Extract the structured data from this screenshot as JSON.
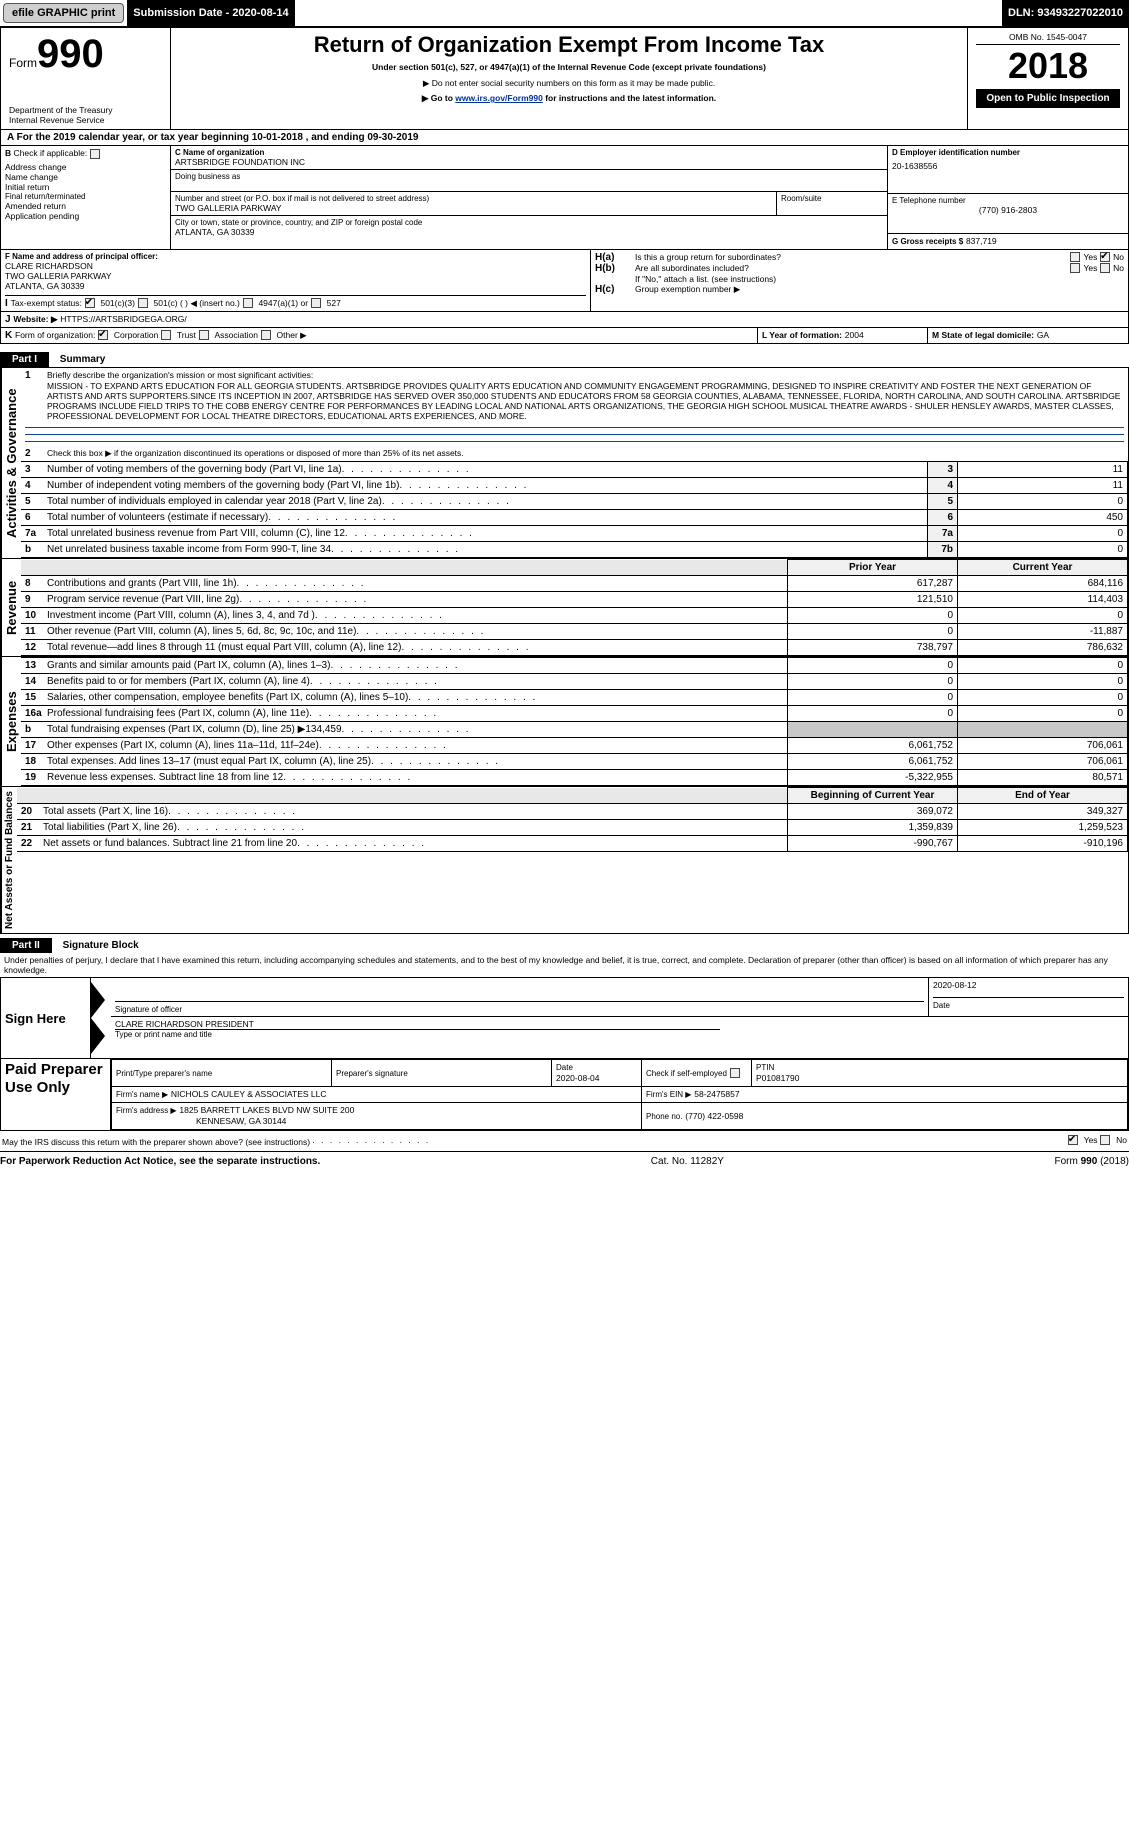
{
  "topbar": {
    "efile": "efile GRAPHIC print",
    "submission_label": "Submission Date - 2020-08-14",
    "dln_label": "DLN: 93493227022010"
  },
  "header": {
    "form_word": "Form",
    "form_num": "990",
    "dept1": "Department of the Treasury",
    "dept2": "Internal Revenue Service",
    "title": "Return of Organization Exempt From Income Tax",
    "subtitle": "Under section 501(c), 527, or 4947(a)(1) of the Internal Revenue Code (except private foundations)",
    "note1": "Do not enter social security numbers on this form as it may be made public.",
    "note2_pre": "Go to ",
    "note2_link": "www.irs.gov/Form990",
    "note2_post": " for instructions and the latest information.",
    "omb": "OMB No. 1545-0047",
    "year": "2018",
    "open": "Open to Public Inspection"
  },
  "line_a": "For the 2019 calendar year, or tax year beginning 10-01-2018    , and ending 09-30-2019",
  "box_b": {
    "title": "Check if applicable:",
    "items": [
      "Address change",
      "Name change",
      "Initial return",
      "Final return/terminated",
      "Amended return",
      "Application pending"
    ]
  },
  "box_c": {
    "label": "C Name of organization",
    "name": "ARTSBRIDGE FOUNDATION INC",
    "dba_label": "Doing business as",
    "addr_label": "Number and street (or P.O. box if mail is not delivered to street address)",
    "addr": "TWO GALLERIA PARKWAY",
    "room_label": "Room/suite",
    "city_label": "City or town, state or province, country, and ZIP or foreign postal code",
    "city": "ATLANTA, GA  30339"
  },
  "box_d": {
    "label": "D Employer identification number",
    "value": "20-1638556"
  },
  "box_e": {
    "label": "E Telephone number",
    "value": "(770) 916-2803"
  },
  "box_g": {
    "label": "G Gross receipts $",
    "value": "837,719"
  },
  "box_f": {
    "label": "F  Name and address of principal officer:",
    "line1": "CLARE RICHARDSON",
    "line2": "TWO GALLERIA PARKWAY",
    "line3": "ATLANTA, GA  30339"
  },
  "box_h": {
    "a": "Is this a group return for subordinates?",
    "b": "Are all subordinates included?",
    "b_note": "If \"No,\" attach a list. (see instructions)",
    "c": "Group exemption number ▶",
    "ha": "H(a)",
    "hb": "H(b)",
    "hc": "H(c)",
    "yes": "Yes",
    "no": "No"
  },
  "box_i": {
    "label": "Tax-exempt status:",
    "o1": "501(c)(3)",
    "o2": "501(c) (   ) ◀ (insert no.)",
    "o3": "4947(a)(1) or",
    "o4": "527"
  },
  "box_j": {
    "label": "Website: ▶",
    "value": "HTTPS://ARTSBRIDGEGA.ORG/"
  },
  "box_k": {
    "label": "Form of organization:",
    "o1": "Corporation",
    "o2": "Trust",
    "o3": "Association",
    "o4": "Other ▶"
  },
  "box_l": {
    "label": "L Year of formation:",
    "value": "2004"
  },
  "box_m": {
    "label": "M State of legal domicile:",
    "value": "GA"
  },
  "part1": {
    "band": "Part I",
    "title": "Summary",
    "q1_label": "Briefly describe the organization's mission or most significant activities:",
    "q1_text": "MISSION - TO EXPAND ARTS EDUCATION FOR ALL GEORGIA STUDENTS. ARTSBRIDGE PROVIDES QUALITY ARTS EDUCATION AND COMMUNITY ENGAGEMENT PROGRAMMING, DESIGNED TO INSPIRE CREATIVITY AND FOSTER THE NEXT GENERATION OF ARTISTS AND ARTS SUPPORTERS.SINCE ITS INCEPTION IN 2007, ARTSBRIDGE HAS SERVED OVER 350,000 STUDENTS AND EDUCATORS FROM 58 GEORGIA COUNTIES, ALABAMA, TENNESSEE, FLORIDA, NORTH CAROLINA, AND SOUTH CAROLINA. ARTSBRIDGE PROGRAMS INCLUDE FIELD TRIPS TO THE COBB ENERGY CENTRE FOR PERFORMANCES BY LEADING LOCAL AND NATIONAL ARTS ORGANIZATIONS, THE GEORGIA HIGH SCHOOL MUSICAL THEATRE AWARDS - SHULER HENSLEY AWARDS, MASTER CLASSES, PROFESSIONAL DEVELOPMENT FOR LOCAL THEATRE DIRECTORS, EDUCATIONAL ARTS EXPERIENCES, AND MORE.",
    "q2": "Check this box ▶     if the organization discontinued its operations or disposed of more than 25% of its net assets.",
    "rows_ag": [
      {
        "n": "3",
        "t": "Number of voting members of the governing body (Part VI, line 1a)",
        "c": "3",
        "v": "11"
      },
      {
        "n": "4",
        "t": "Number of independent voting members of the governing body (Part VI, line 1b)",
        "c": "4",
        "v": "11"
      },
      {
        "n": "5",
        "t": "Total number of individuals employed in calendar year 2018 (Part V, line 2a)",
        "c": "5",
        "v": "0"
      },
      {
        "n": "6",
        "t": "Total number of volunteers (estimate if necessary)",
        "c": "6",
        "v": "450"
      },
      {
        "n": "7a",
        "t": "Total unrelated business revenue from Part VIII, column (C), line 12",
        "c": "7a",
        "v": "0"
      },
      {
        "n": "b",
        "t": "Net unrelated business taxable income from Form 990-T, line 34",
        "c": "7b",
        "v": "0"
      }
    ],
    "col_prior": "Prior Year",
    "col_curr": "Current Year",
    "rows_rev": [
      {
        "n": "8",
        "t": "Contributions and grants (Part VIII, line 1h)",
        "p": "617,287",
        "c": "684,116"
      },
      {
        "n": "9",
        "t": "Program service revenue (Part VIII, line 2g)",
        "p": "121,510",
        "c": "114,403"
      },
      {
        "n": "10",
        "t": "Investment income (Part VIII, column (A), lines 3, 4, and 7d )",
        "p": "0",
        "c": "0"
      },
      {
        "n": "11",
        "t": "Other revenue (Part VIII, column (A), lines 5, 6d, 8c, 9c, 10c, and 11e)",
        "p": "0",
        "c": "-11,887"
      },
      {
        "n": "12",
        "t": "Total revenue—add lines 8 through 11 (must equal Part VIII, column (A), line 12)",
        "p": "738,797",
        "c": "786,632"
      }
    ],
    "rows_exp": [
      {
        "n": "13",
        "t": "Grants and similar amounts paid (Part IX, column (A), lines 1–3)",
        "p": "0",
        "c": "0"
      },
      {
        "n": "14",
        "t": "Benefits paid to or for members (Part IX, column (A), line 4)",
        "p": "0",
        "c": "0"
      },
      {
        "n": "15",
        "t": "Salaries, other compensation, employee benefits (Part IX, column (A), lines 5–10)",
        "p": "0",
        "c": "0"
      },
      {
        "n": "16a",
        "t": "Professional fundraising fees (Part IX, column (A), line 11e)",
        "p": "0",
        "c": "0"
      },
      {
        "n": "b",
        "t": "Total fundraising expenses (Part IX, column (D), line 25) ▶134,459",
        "p": "",
        "c": "",
        "grey": true
      },
      {
        "n": "17",
        "t": "Other expenses (Part IX, column (A), lines 11a–11d, 11f–24e)",
        "p": "6,061,752",
        "c": "706,061"
      },
      {
        "n": "18",
        "t": "Total expenses. Add lines 13–17 (must equal Part IX, column (A), line 25)",
        "p": "6,061,752",
        "c": "706,061"
      },
      {
        "n": "19",
        "t": "Revenue less expenses. Subtract line 18 from line 12",
        "p": "-5,322,955",
        "c": "80,571"
      }
    ],
    "col_begin": "Beginning of Current Year",
    "col_end": "End of Year",
    "rows_na": [
      {
        "n": "20",
        "t": "Total assets (Part X, line 16)",
        "p": "369,072",
        "c": "349,327"
      },
      {
        "n": "21",
        "t": "Total liabilities (Part X, line 26)",
        "p": "1,359,839",
        "c": "1,259,523"
      },
      {
        "n": "22",
        "t": "Net assets or fund balances. Subtract line 21 from line 20",
        "p": "-990,767",
        "c": "-910,196"
      }
    ],
    "vlab_ag": "Activities & Governance",
    "vlab_rev": "Revenue",
    "vlab_exp": "Expenses",
    "vlab_na": "Net Assets or Fund Balances"
  },
  "part2": {
    "band": "Part II",
    "title": "Signature Block",
    "decl": "Under penalties of perjury, I declare that I have examined this return, including accompanying schedules and statements, and to the best of my knowledge and belief, it is true, correct, and complete. Declaration of preparer (other than officer) is based on all information of which preparer has any knowledge.",
    "sign_here": "Sign Here",
    "sig_officer": "Signature of officer",
    "sig_date": "2020-08-12",
    "date_label": "Date",
    "officer_name": "CLARE RICHARDSON  PRESIDENT",
    "type_name": "Type or print name and title",
    "paid": "Paid Preparer Use Only",
    "col_print": "Print/Type preparer's name",
    "col_sig": "Preparer's signature",
    "col_date": "Date",
    "date_val": "2020-08-04",
    "col_check": "Check        if self-employed",
    "col_ptin": "PTIN",
    "ptin": "P01081790",
    "firm_name_label": "Firm's name     ▶",
    "firm_name": "NICHOLS CAULEY & ASSOCIATES LLC",
    "firm_ein_label": "Firm's EIN ▶",
    "firm_ein": "58-2475857",
    "firm_addr_label": "Firm's address ▶",
    "firm_addr1": "1825 BARRETT LAKES BLVD NW SUITE 200",
    "firm_addr2": "KENNESAW, GA  30144",
    "firm_phone_label": "Phone no.",
    "firm_phone": "(770) 422-0598",
    "discuss": "May the IRS discuss this return with the preparer shown above? (see instructions)",
    "yes": "Yes",
    "no": "No"
  },
  "footer": {
    "left": "For Paperwork Reduction Act Notice, see the separate instructions.",
    "mid": "Cat. No. 11282Y",
    "right": "Form 990 (2018)"
  }
}
